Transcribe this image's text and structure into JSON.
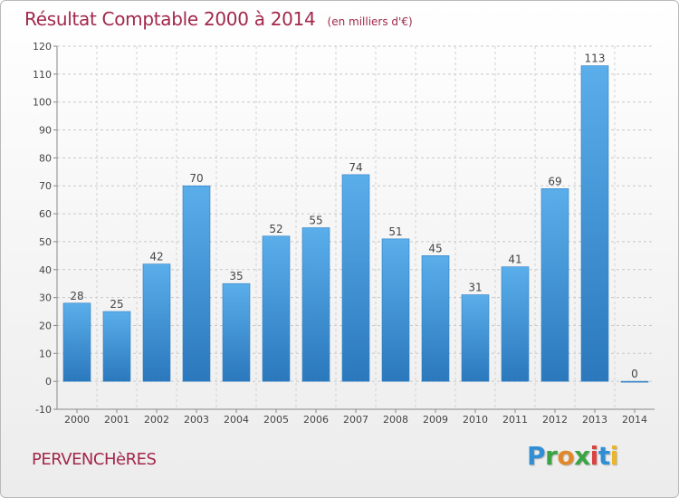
{
  "header": {
    "title": "Résultat Comptable 2000 à 2014",
    "subtitle": "(en milliers d'€)"
  },
  "footer": {
    "place": "PERVENCHèRES",
    "logo_text": "Proxiti",
    "logo_colors": [
      "#2f8fd6",
      "#3aa443",
      "#e1882a",
      "#3aa443",
      "#d94241",
      "#2f8fd6",
      "#e9b52b"
    ]
  },
  "chart_data": {
    "type": "bar",
    "title": "Résultat Comptable 2000 à 2014",
    "subtitle": "(en milliers d'€)",
    "categories": [
      "2000",
      "2001",
      "2002",
      "2003",
      "2004",
      "2005",
      "2006",
      "2007",
      "2008",
      "2009",
      "2010",
      "2011",
      "2012",
      "2013",
      "2014"
    ],
    "values": [
      28,
      25,
      42,
      70,
      35,
      52,
      55,
      74,
      51,
      45,
      31,
      41,
      69,
      113,
      0
    ],
    "ylim": [
      -10,
      120
    ],
    "yticks": [
      -10,
      0,
      10,
      20,
      30,
      40,
      50,
      60,
      70,
      80,
      90,
      100,
      110,
      120
    ],
    "grid": true,
    "bar_color": "#4a9fe0"
  }
}
